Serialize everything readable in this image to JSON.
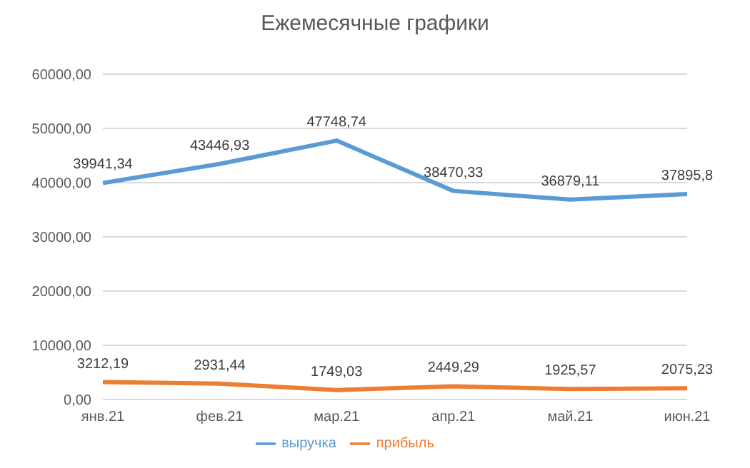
{
  "chart_data": {
    "type": "line",
    "title": "Ежемесячные графики",
    "categories": [
      "янв.21",
      "фев.21",
      "мар.21",
      "апр.21",
      "май.21",
      "июн.21"
    ],
    "series": [
      {
        "name": "выручка",
        "color": "#5b9bd5",
        "values": [
          39941.34,
          43446.93,
          47748.74,
          38470.33,
          36879.11,
          37895.8
        ],
        "value_labels": [
          "39941,34",
          "43446,93",
          "47748,74",
          "38470,33",
          "36879,11",
          "37895,8"
        ]
      },
      {
        "name": "прибыль",
        "color": "#ed7d31",
        "values": [
          3212.19,
          2931.44,
          1749.03,
          2449.29,
          1925.57,
          2075.23
        ],
        "value_labels": [
          "3212,19",
          "2931,44",
          "1749,03",
          "2449,29",
          "1925,57",
          "2075,23"
        ]
      }
    ],
    "ylim": [
      0,
      60000
    ],
    "yticks": [
      {
        "value": 0,
        "label": "0,00"
      },
      {
        "value": 10000,
        "label": "10000,00"
      },
      {
        "value": 20000,
        "label": "20000,00"
      },
      {
        "value": 30000,
        "label": "30000,00"
      },
      {
        "value": 40000,
        "label": "40000,00"
      },
      {
        "value": 50000,
        "label": "50000,00"
      },
      {
        "value": 60000,
        "label": "60000,00"
      }
    ],
    "grid": "y",
    "legend": "bottom",
    "marker": "none",
    "line_style": "solid"
  }
}
